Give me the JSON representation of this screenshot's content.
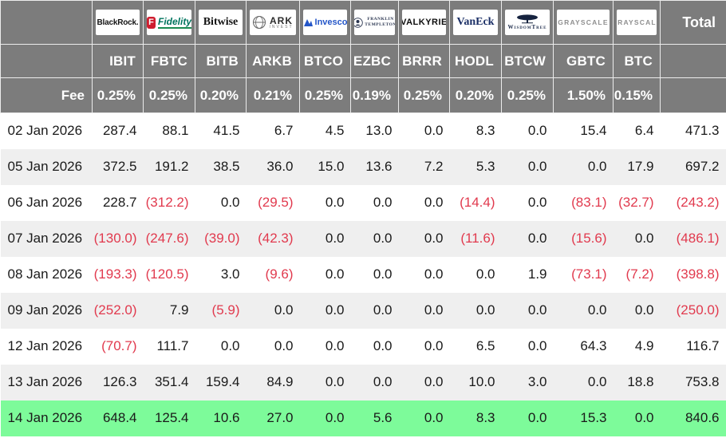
{
  "chart_data": {
    "type": "table",
    "fee_label": "Fee",
    "total_label": "Total",
    "providers": [
      {
        "key": "blackrock",
        "name": "BlackRock",
        "logo_text": "BlackRock.",
        "ticker": "IBIT",
        "fee": "0.25%"
      },
      {
        "key": "fidelity",
        "name": "Fidelity",
        "logo_mark": "F",
        "logo_text": "Fidelity",
        "ticker": "FBTC",
        "fee": "0.25%"
      },
      {
        "key": "bitwise",
        "name": "Bitwise",
        "logo_text": "Bitwise",
        "ticker": "BITB",
        "fee": "0.20%"
      },
      {
        "key": "ark",
        "name": "ARK Invest",
        "logo_text": "ARK",
        "logo_subtext": "INVEST",
        "ticker": "ARKB",
        "fee": "0.21%"
      },
      {
        "key": "invesco",
        "name": "Invesco",
        "logo_text": "Invesco",
        "ticker": "BTCO",
        "fee": "0.25%"
      },
      {
        "key": "franklin",
        "name": "Franklin Templeton",
        "logo_text": "FRANKLIN",
        "logo_subtext": "TEMPLETON",
        "ticker": "EZBC",
        "fee": "0.19%"
      },
      {
        "key": "valkyrie",
        "name": "Valkyrie",
        "logo_text": "VALKYRIE",
        "ticker": "BRRR",
        "fee": "0.25%"
      },
      {
        "key": "vaneck",
        "name": "VanEck",
        "logo_text": "VanEck",
        "ticker": "HODL",
        "fee": "0.20%"
      },
      {
        "key": "wisdomtree",
        "name": "WisdomTree",
        "logo_text": "WisdomTree",
        "ticker": "BTCW",
        "fee": "0.25%"
      },
      {
        "key": "grayscale",
        "name": "Grayscale",
        "logo_text": "GRAYSCALE",
        "ticker": "GBTC",
        "fee": "1.50%"
      },
      {
        "key": "grayscale-btc",
        "name": "Grayscale",
        "logo_text": "GRAYSCALE",
        "ticker": "BTC",
        "fee": "0.15%"
      }
    ],
    "rows": [
      {
        "date": "02 Jan 2026",
        "values": [
          "287.4",
          "88.1",
          "41.5",
          "6.7",
          "4.5",
          "13.0",
          "0.0",
          "8.3",
          "0.0",
          "15.4",
          "6.4"
        ],
        "total": "471.3",
        "highlight": false
      },
      {
        "date": "05 Jan 2026",
        "values": [
          "372.5",
          "191.2",
          "38.5",
          "36.0",
          "15.0",
          "13.6",
          "7.2",
          "5.3",
          "0.0",
          "0.0",
          "17.9"
        ],
        "total": "697.2",
        "highlight": false
      },
      {
        "date": "06 Jan 2026",
        "values": [
          "228.7",
          "(312.2)",
          "0.0",
          "(29.5)",
          "0.0",
          "0.0",
          "0.0",
          "(14.4)",
          "0.0",
          "(83.1)",
          "(32.7)"
        ],
        "total": "(243.2)",
        "highlight": false
      },
      {
        "date": "07 Jan 2026",
        "values": [
          "(130.0)",
          "(247.6)",
          "(39.0)",
          "(42.3)",
          "0.0",
          "0.0",
          "0.0",
          "(11.6)",
          "0.0",
          "(15.6)",
          "0.0"
        ],
        "total": "(486.1)",
        "highlight": false
      },
      {
        "date": "08 Jan 2026",
        "values": [
          "(193.3)",
          "(120.5)",
          "3.0",
          "(9.6)",
          "0.0",
          "0.0",
          "0.0",
          "0.0",
          "1.9",
          "(73.1)",
          "(7.2)"
        ],
        "total": "(398.8)",
        "highlight": false
      },
      {
        "date": "09 Jan 2026",
        "values": [
          "(252.0)",
          "7.9",
          "(5.9)",
          "0.0",
          "0.0",
          "0.0",
          "0.0",
          "0.0",
          "0.0",
          "0.0",
          "0.0"
        ],
        "total": "(250.0)",
        "highlight": false
      },
      {
        "date": "12 Jan 2026",
        "values": [
          "(70.7)",
          "111.7",
          "0.0",
          "0.0",
          "0.0",
          "0.0",
          "0.0",
          "6.5",
          "0.0",
          "64.3",
          "4.9"
        ],
        "total": "116.7",
        "highlight": false
      },
      {
        "date": "13 Jan 2026",
        "values": [
          "126.3",
          "351.4",
          "159.4",
          "84.9",
          "0.0",
          "0.0",
          "0.0",
          "10.0",
          "3.0",
          "0.0",
          "18.8"
        ],
        "total": "753.8",
        "highlight": false
      },
      {
        "date": "14 Jan 2026",
        "values": [
          "648.4",
          "125.4",
          "10.6",
          "27.0",
          "0.0",
          "5.6",
          "0.0",
          "8.3",
          "0.0",
          "15.3",
          "0.0"
        ],
        "total": "840.6",
        "highlight": true
      }
    ],
    "colors": {
      "header_bg": "#7c7c7c",
      "header_text": "#ffffff",
      "row_alt_bg": "#efefef",
      "highlight_row_bg": "#7dfb9a",
      "negative_text": "#e13a4e",
      "body_text": "#1a1a1a"
    }
  }
}
